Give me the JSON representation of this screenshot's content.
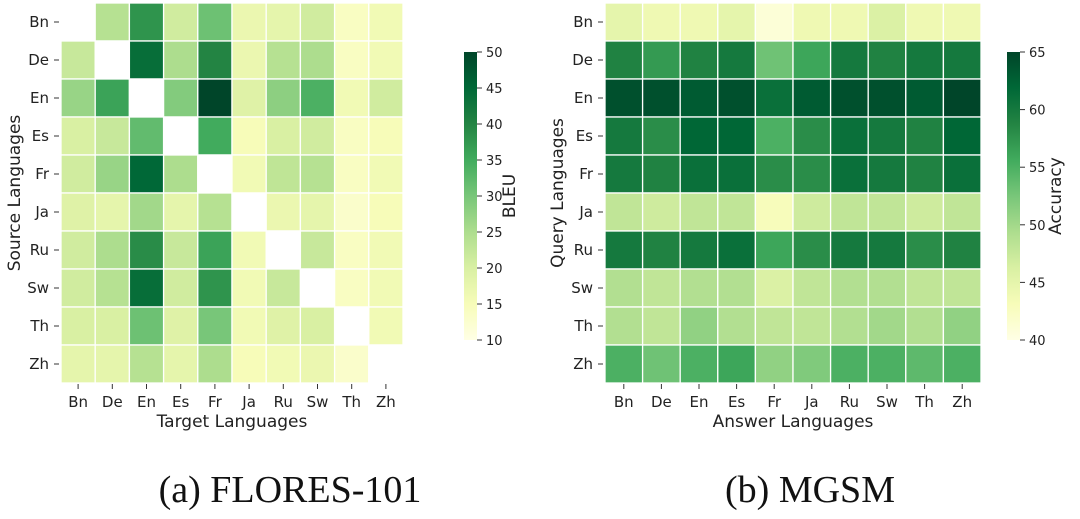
{
  "languages": [
    "Bn",
    "De",
    "En",
    "Es",
    "Fr",
    "Ja",
    "Ru",
    "Sw",
    "Th",
    "Zh"
  ],
  "chart_data": [
    {
      "type": "heatmap",
      "caption": "(a) FLORES-101",
      "xlabel": "Target Languages",
      "ylabel": "Source Languages",
      "colorbar_label": "BLEU",
      "vmin": 10,
      "vmax": 50,
      "colorbar_ticks": [
        10,
        15,
        20,
        25,
        30,
        35,
        40,
        45,
        50
      ],
      "x": [
        "Bn",
        "De",
        "En",
        "Es",
        "Fr",
        "Ja",
        "Ru",
        "Sw",
        "Th",
        "Zh"
      ],
      "y": [
        "Bn",
        "De",
        "En",
        "Es",
        "Fr",
        "Ja",
        "Ru",
        "Sw",
        "Th",
        "Zh"
      ],
      "values": [
        [
          null,
          24,
          38,
          21,
          31,
          17,
          18,
          21,
          14,
          16
        ],
        [
          22,
          null,
          44,
          25,
          40,
          17,
          24,
          25,
          14,
          16
        ],
        [
          27,
          36,
          null,
          29,
          50,
          19,
          28,
          34,
          16,
          21
        ],
        [
          20,
          22,
          32,
          null,
          35,
          15,
          20,
          21,
          14,
          15
        ],
        [
          21,
          27,
          45,
          25,
          null,
          16,
          23,
          24,
          14,
          16
        ],
        [
          19,
          18,
          26,
          18,
          24,
          null,
          17,
          18,
          13,
          15
        ],
        [
          21,
          25,
          39,
          22,
          36,
          16,
          null,
          22,
          14,
          16
        ],
        [
          21,
          24,
          44,
          21,
          38,
          16,
          22,
          null,
          14,
          16
        ],
        [
          20,
          20,
          31,
          19,
          30,
          16,
          19,
          20,
          null,
          16
        ],
        [
          18,
          18,
          24,
          18,
          25,
          15,
          16,
          17,
          13,
          null
        ]
      ]
    },
    {
      "type": "heatmap",
      "caption": "(b) MGSM",
      "xlabel": "Answer Languages",
      "ylabel": "Query Languages",
      "colorbar_label": "Accuracy",
      "vmin": 40,
      "vmax": 65,
      "colorbar_ticks": [
        40,
        45,
        50,
        55,
        60,
        65
      ],
      "x": [
        "Bn",
        "De",
        "En",
        "Es",
        "Fr",
        "Ja",
        "Ru",
        "Sw",
        "Th",
        "Zh"
      ],
      "y": [
        "Bn",
        "De",
        "En",
        "Es",
        "Fr",
        "Ja",
        "Ru",
        "Sw",
        "Th",
        "Zh"
      ],
      "values": [
        [
          45,
          44,
          44,
          45,
          41,
          44,
          44,
          46,
          44,
          44
        ],
        [
          59,
          57,
          59,
          60,
          53,
          56,
          60,
          59,
          60,
          60
        ],
        [
          64,
          64,
          63,
          64,
          61,
          63,
          64,
          64,
          63,
          65
        ],
        [
          60,
          58,
          62,
          62,
          55,
          58,
          61,
          60,
          59,
          62
        ],
        [
          60,
          59,
          61,
          61,
          58,
          58,
          61,
          60,
          59,
          61
        ],
        [
          48,
          47,
          48,
          48,
          43,
          47,
          48,
          48,
          47,
          48
        ],
        [
          60,
          59,
          60,
          61,
          56,
          58,
          60,
          60,
          58,
          59
        ],
        [
          49,
          48,
          49,
          49,
          46,
          48,
          49,
          49,
          48,
          48
        ],
        [
          49,
          48,
          51,
          49,
          48,
          48,
          49,
          50,
          49,
          51
        ],
        [
          55,
          53,
          55,
          56,
          51,
          52,
          55,
          55,
          54,
          55
        ]
      ]
    }
  ]
}
